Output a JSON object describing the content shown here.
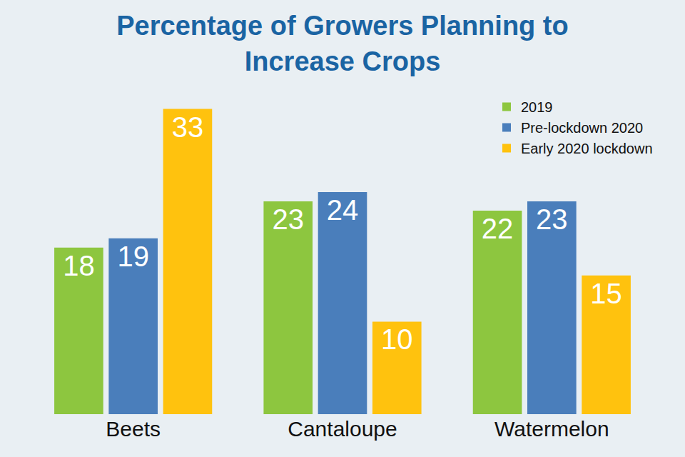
{
  "chart_data": {
    "type": "bar",
    "title": "Percentage of Growers Planning to Increase Crops",
    "categories": [
      "Beets",
      "Cantaloupe",
      "Watermelon"
    ],
    "series": [
      {
        "name": "2019",
        "color": "#8dc63f",
        "values": [
          18,
          23,
          22
        ]
      },
      {
        "name": "Pre-lockdown 2020",
        "color": "#4a7ebb",
        "values": [
          19,
          24,
          23
        ]
      },
      {
        "name": "Early 2020 lockdown",
        "color": "#ffc20e",
        "values": [
          33,
          10,
          15
        ]
      }
    ],
    "data_labels": true,
    "tick_labels": "x",
    "grid": false,
    "legend": "top right"
  }
}
